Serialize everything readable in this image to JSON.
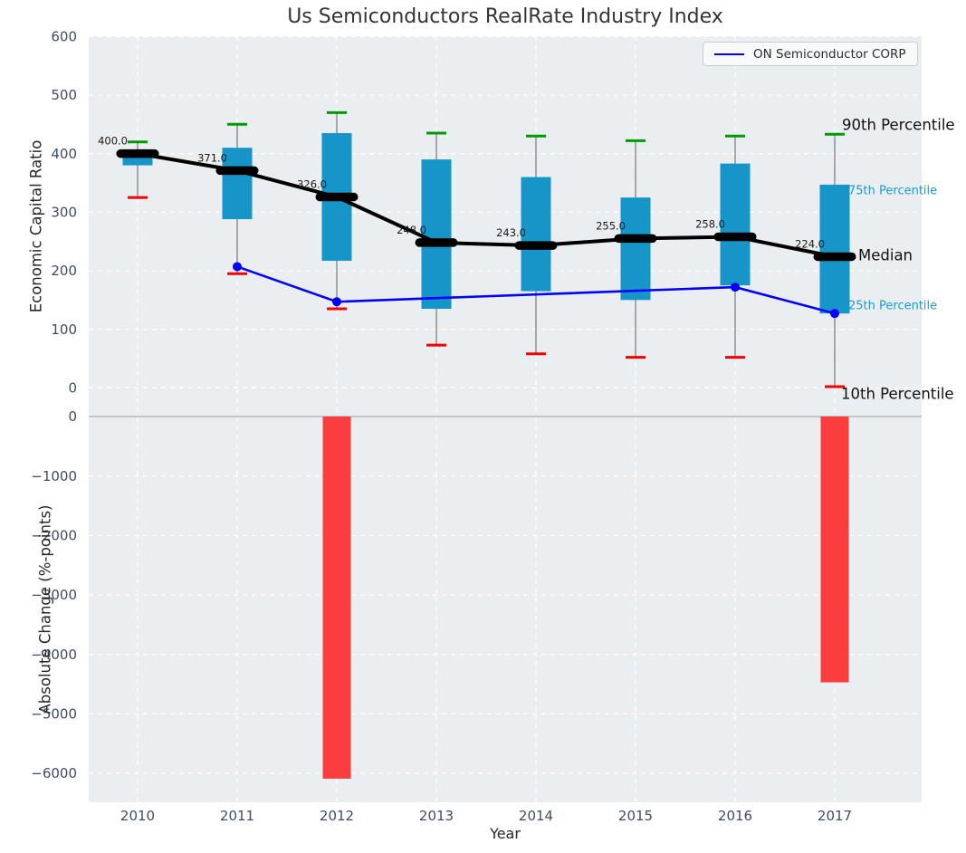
{
  "chart_data": [
    {
      "type": "boxplot+line",
      "title": "Us Semiconductors RealRate Industry Index",
      "ylabel": "Economic Capital Ratio",
      "ylim": [
        -50,
        600
      ],
      "yticks": [
        600,
        500,
        400,
        300,
        200,
        100,
        0
      ],
      "ytick_labels": [
        "600",
        "500",
        "400",
        "300",
        "200",
        "100",
        "0"
      ],
      "categories": [
        "2010",
        "2011",
        "2012",
        "2013",
        "2014",
        "2015",
        "2016",
        "2017"
      ],
      "grid": true,
      "legend": {
        "label": "ON Semiconductor CORP",
        "position": "upper right"
      },
      "boxes": [
        {
          "year": "2010",
          "p10": 325,
          "p25": 380,
          "median": 400,
          "p75": 405,
          "p90": 420,
          "label": "400.0"
        },
        {
          "year": "2011",
          "p10": 195,
          "p25": 288,
          "median": 371,
          "p75": 410,
          "p90": 450,
          "label": "371.0"
        },
        {
          "year": "2012",
          "p10": 135,
          "p25": 217,
          "median": 326,
          "p75": 435,
          "p90": 470,
          "label": "326.0"
        },
        {
          "year": "2013",
          "p10": 73,
          "p25": 135,
          "median": 248,
          "p75": 390,
          "p90": 435,
          "label": "248.0"
        },
        {
          "year": "2014",
          "p10": 58,
          "p25": 165,
          "median": 243,
          "p75": 360,
          "p90": 430,
          "label": "243.0"
        },
        {
          "year": "2015",
          "p10": 52,
          "p25": 150,
          "median": 255,
          "p75": 325,
          "p90": 422,
          "label": "255.0"
        },
        {
          "year": "2016",
          "p10": 52,
          "p25": 175,
          "median": 258,
          "p75": 383,
          "p90": 430,
          "label": "258.0"
        },
        {
          "year": "2017",
          "p10": 2,
          "p25": 127,
          "median": 224,
          "p75": 347,
          "p90": 433,
          "label": "224.0"
        }
      ],
      "series": [
        {
          "name": "ON Semiconductor CORP",
          "values": [
            null,
            207,
            147,
            null,
            null,
            null,
            172,
            127
          ]
        }
      ],
      "annotations": {
        "p90": "90th Percentile",
        "p75": "75th Percentile",
        "median": "Median",
        "p25": "25th Percentile",
        "p10": "10th Percentile"
      },
      "colors": {
        "box": "#1595c8",
        "whisker": "#808080",
        "cap_high": "#009a00",
        "cap_low": "#f40000",
        "median": "#000000",
        "company_line": "#0000ff",
        "background": "#ebeef0",
        "grid": "#ffffff",
        "tick_text": "#3e4d66",
        "percentile_label": "#1a9cd4",
        "divider": "#c2c4c6"
      }
    },
    {
      "type": "bar",
      "ylabel": "Absolute Change (%-points)",
      "xlabel": "Year",
      "ylim": [
        -6500,
        0
      ],
      "yticks": [
        0,
        -1000,
        -2000,
        -3000,
        -4000,
        -5000,
        -6000
      ],
      "ytick_labels": [
        "0",
        "−1000",
        "−2000",
        "−3000",
        "−4000",
        "−5000",
        "−6000"
      ],
      "categories": [
        "2010",
        "2011",
        "2012",
        "2013",
        "2014",
        "2015",
        "2016",
        "2017"
      ],
      "values": [
        0,
        0,
        -6090,
        0,
        0,
        0,
        0,
        -4470
      ],
      "colors": {
        "bar": "#fa3d3d"
      },
      "grid": true
    }
  ]
}
